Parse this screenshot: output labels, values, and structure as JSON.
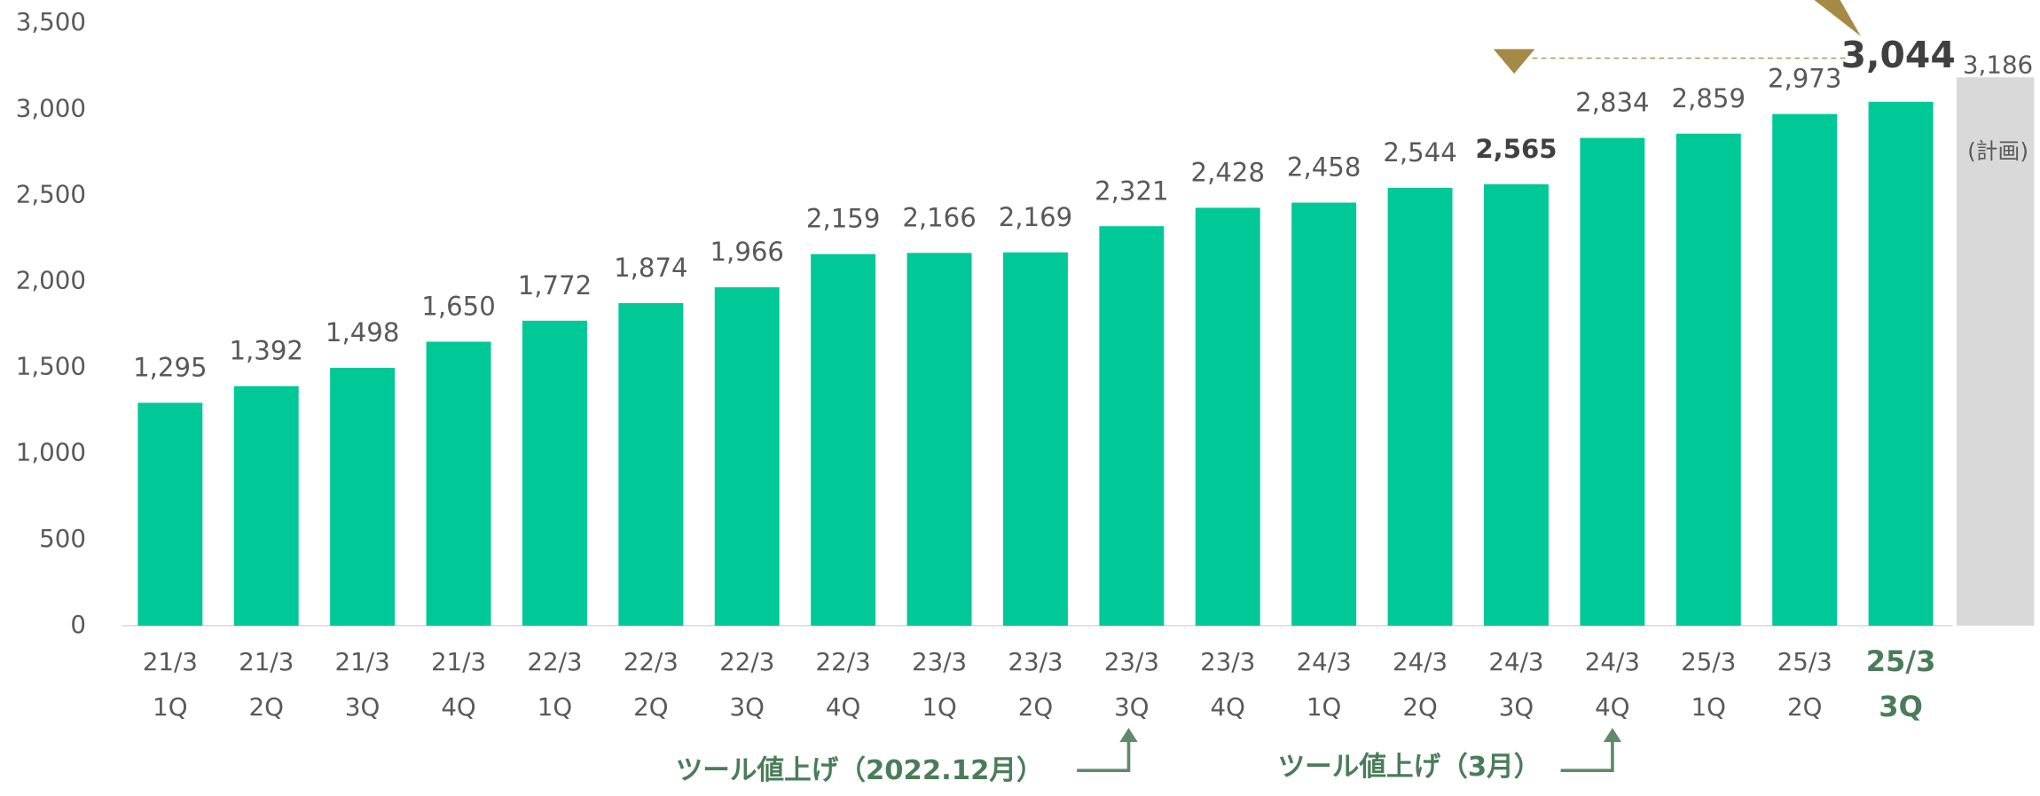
{
  "chart_data": {
    "type": "bar",
    "categories": [
      [
        "21/3",
        "1Q"
      ],
      [
        "21/3",
        "2Q"
      ],
      [
        "21/3",
        "3Q"
      ],
      [
        "21/3",
        "4Q"
      ],
      [
        "22/3",
        "1Q"
      ],
      [
        "22/3",
        "2Q"
      ],
      [
        "22/3",
        "3Q"
      ],
      [
        "22/3",
        "4Q"
      ],
      [
        "23/3",
        "1Q"
      ],
      [
        "23/3",
        "2Q"
      ],
      [
        "23/3",
        "3Q"
      ],
      [
        "23/3",
        "4Q"
      ],
      [
        "24/3",
        "1Q"
      ],
      [
        "24/3",
        "2Q"
      ],
      [
        "24/3",
        "3Q"
      ],
      [
        "24/3",
        "4Q"
      ],
      [
        "25/3",
        "1Q"
      ],
      [
        "25/3",
        "2Q"
      ],
      [
        "25/3",
        "3Q"
      ]
    ],
    "values": [
      1295,
      1392,
      1498,
      1650,
      1772,
      1874,
      1966,
      2159,
      2166,
      2169,
      2321,
      2428,
      2458,
      2544,
      2565,
      2834,
      2859,
      2973,
      3044
    ],
    "value_labels": [
      "1,295",
      "1,392",
      "1,498",
      "1,650",
      "1,772",
      "1,874",
      "1,966",
      "2,159",
      "2,166",
      "2,169",
      "2,321",
      "2,428",
      "2,458",
      "2,544",
      "2,565",
      "2,834",
      "2,859",
      "2,973",
      "3,044"
    ],
    "color": "#00c896",
    "ylim": [
      0,
      3500
    ],
    "yticks": [
      0,
      500,
      {
        "value": 1000,
        "label": "1,000"
      },
      {
        "value": 1500,
        "label": "1,500"
      },
      {
        "value": 2000,
        "label": "2,000"
      },
      {
        "value": 2500,
        "label": "2,500"
      },
      {
        "value": 3000,
        "label": "3,000"
      },
      {
        "value": 3500,
        "label": "3,500"
      }
    ],
    "plan": {
      "value": 3186,
      "value_label": "3,186",
      "label": "(計画)",
      "color": "#d9d9d9"
    },
    "annotations": [
      "ツール値上げ（2022.12月）",
      "ツール値上げ（3月）"
    ]
  }
}
